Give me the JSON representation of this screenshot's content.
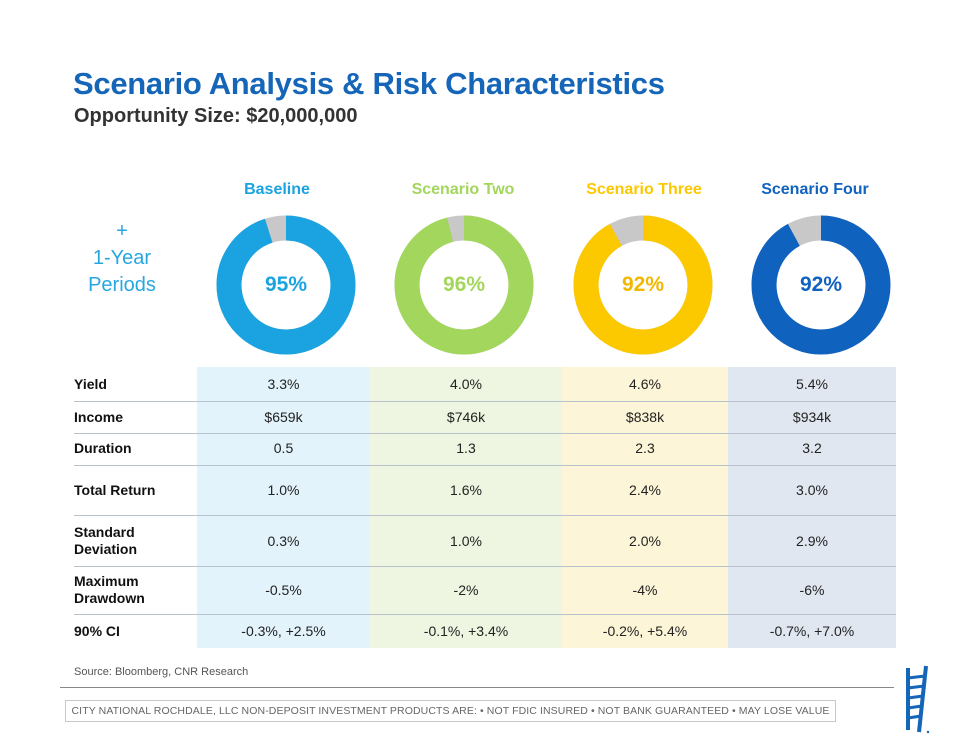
{
  "header": {
    "title": "Scenario Analysis & Risk Characteristics",
    "subtitle": "Opportunity Size: $20,000,000"
  },
  "side_note": {
    "plus": "+",
    "line1": "1-Year",
    "line2": "Periods"
  },
  "scenarios": [
    {
      "name": "Baseline",
      "percent": "95%",
      "value": 95,
      "color": "#1aa3e0",
      "bg": "#e2f3fb"
    },
    {
      "name": "Scenario Two",
      "percent": "96%",
      "value": 96,
      "color": "#a3d65c",
      "bg": "#eef6e1"
    },
    {
      "name": "Scenario Three",
      "percent": "92%",
      "value": 92,
      "color": "#fcc800",
      "bg": "#fdf5d7"
    },
    {
      "name": "Scenario Four",
      "percent": "92%",
      "value": 92,
      "color": "#1062bf",
      "bg": "#e1e7f0"
    }
  ],
  "donut_remainder_color": "#c8c8c8",
  "table": {
    "rows": [
      {
        "label": "Yield",
        "values": [
          "3.3%",
          "4.0%",
          "4.6%",
          "5.4%"
        ]
      },
      {
        "label": "Income",
        "values": [
          "$659k",
          "$746k",
          "$838k",
          "$934k"
        ]
      },
      {
        "label": "Duration",
        "values": [
          "0.5",
          "1.3",
          "2.3",
          "3.2"
        ]
      },
      {
        "label": "Total Return",
        "values": [
          "1.0%",
          "1.6%",
          "2.4%",
          "3.0%"
        ]
      },
      {
        "label": "Standard Deviation",
        "values": [
          "0.3%",
          "1.0%",
          "2.0%",
          "2.9%"
        ]
      },
      {
        "label": "Maximum Drawdown",
        "values": [
          "-0.5%",
          "-2%",
          "-4%",
          "-6%"
        ]
      },
      {
        "label": "90% CI",
        "values": [
          "-0.3%, +2.5%",
          "-0.1%, +3.4%",
          "-0.2%, +5.4%",
          "-0.7%, +7.0%"
        ]
      }
    ]
  },
  "footer": {
    "source": "Source: Bloomberg, CNR Research",
    "disclaimer": "CITY NATIONAL ROCHDALE, LLC NON-DEPOSIT INVESTMENT PRODUCTS ARE: • NOT FDIC INSURED • NOT BANK GUARANTEED • MAY LOSE VALUE"
  }
}
